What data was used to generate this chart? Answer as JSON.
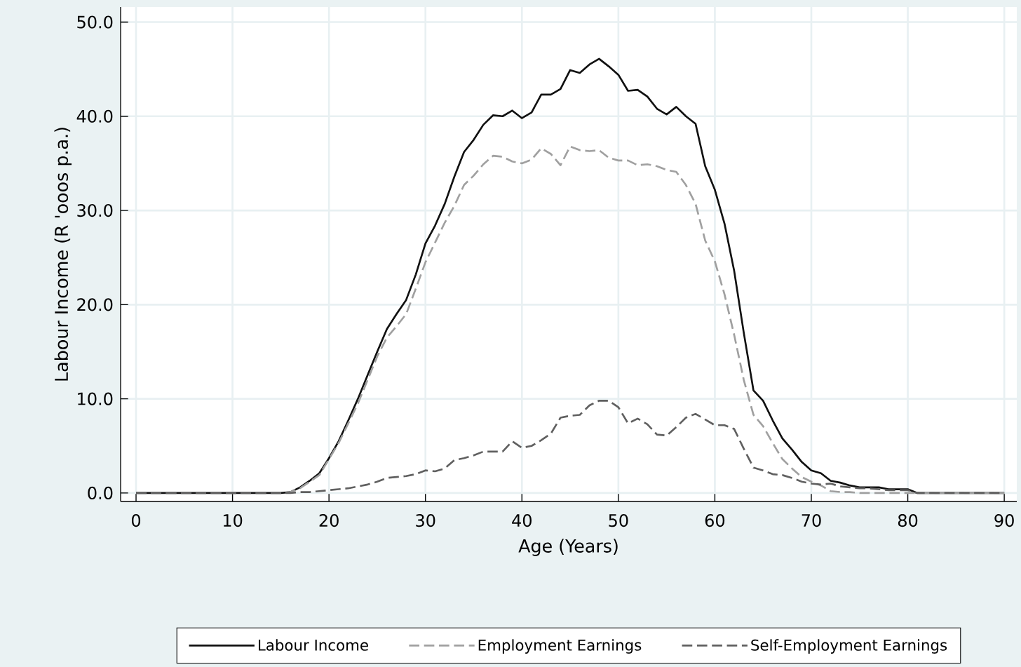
{
  "chart_data": {
    "type": "line",
    "xlabel": "Age (Years)",
    "ylabel": "Labour Income (R 'ooos p.a.)",
    "x": [
      0,
      1,
      2,
      3,
      4,
      5,
      6,
      7,
      8,
      9,
      10,
      11,
      12,
      13,
      14,
      15,
      16,
      17,
      18,
      19,
      20,
      21,
      22,
      23,
      24,
      25,
      26,
      27,
      28,
      29,
      30,
      31,
      32,
      33,
      34,
      35,
      36,
      37,
      38,
      39,
      40,
      41,
      42,
      43,
      44,
      45,
      46,
      47,
      48,
      49,
      50,
      51,
      52,
      53,
      54,
      55,
      56,
      57,
      58,
      59,
      60,
      61,
      62,
      63,
      64,
      65,
      66,
      67,
      68,
      69,
      70,
      71,
      72,
      73,
      74,
      75,
      76,
      77,
      78,
      79,
      80,
      81,
      82,
      83,
      84,
      85,
      86,
      87,
      88,
      89,
      90
    ],
    "series": [
      {
        "name": "Labour Income",
        "color": "#111111",
        "line_style": "solid",
        "values": [
          0,
          0,
          0,
          0,
          0,
          0,
          0,
          0,
          0,
          0,
          0,
          0,
          0,
          0,
          0,
          0,
          0.1,
          0.6,
          1.3,
          2.1,
          3.7,
          5.5,
          7.7,
          10.0,
          12.5,
          15.0,
          17.4,
          19.0,
          20.5,
          23.2,
          26.5,
          28.4,
          30.7,
          33.6,
          36.2,
          37.5,
          39.1,
          40.1,
          40.0,
          40.6,
          39.8,
          40.4,
          42.3,
          42.3,
          42.9,
          44.9,
          44.6,
          45.5,
          46.1,
          45.3,
          44.4,
          42.7,
          42.8,
          42.1,
          40.8,
          40.2,
          41.0,
          40.0,
          39.2,
          34.7,
          32.2,
          28.6,
          23.6,
          17.0,
          10.9,
          9.8,
          7.7,
          5.8,
          4.6,
          3.3,
          2.4,
          2.1,
          1.3,
          1.1,
          0.8,
          0.6,
          0.6,
          0.6,
          0.4,
          0.4,
          0.4,
          0,
          0,
          0,
          0,
          0,
          0,
          0,
          0,
          0,
          0
        ]
      },
      {
        "name": "Employment Earnings",
        "color": "#a0a0a0",
        "line_style": "dashed",
        "values": [
          0,
          0,
          0,
          0,
          0,
          0,
          0,
          0,
          0,
          0,
          0,
          0,
          0,
          0,
          0,
          0,
          0.1,
          0.5,
          1.2,
          1.9,
          3.6,
          5.3,
          7.4,
          9.5,
          12.0,
          14.5,
          16.5,
          17.7,
          19.0,
          21.7,
          24.5,
          26.6,
          28.7,
          30.5,
          32.7,
          33.7,
          34.9,
          35.8,
          35.7,
          35.2,
          35.0,
          35.4,
          36.6,
          36.0,
          34.8,
          36.8,
          36.4,
          36.3,
          36.4,
          35.6,
          35.3,
          35.3,
          34.8,
          34.9,
          34.7,
          34.3,
          34.1,
          32.7,
          30.7,
          26.8,
          24.6,
          21.1,
          16.8,
          12.0,
          8.3,
          7.1,
          5.3,
          3.6,
          2.6,
          1.7,
          1.2,
          0.8,
          0.2,
          0.1,
          0.1,
          0,
          0,
          0,
          0,
          0,
          0,
          0,
          0,
          0,
          0,
          0,
          0,
          0,
          0,
          0,
          0
        ]
      },
      {
        "name": "Self-Employment Earnings",
        "color": "#606060",
        "line_style": "dashed",
        "values": [
          0,
          0,
          0,
          0,
          0,
          0,
          0,
          0,
          0,
          0,
          0,
          0,
          0,
          0,
          0,
          0,
          0,
          0.1,
          0.1,
          0.2,
          0.3,
          0.4,
          0.5,
          0.7,
          0.9,
          1.2,
          1.6,
          1.7,
          1.8,
          2.0,
          2.4,
          2.3,
          2.6,
          3.5,
          3.7,
          4.0,
          4.4,
          4.4,
          4.4,
          5.5,
          4.8,
          5.0,
          5.6,
          6.3,
          8.0,
          8.2,
          8.3,
          9.3,
          9.8,
          9.8,
          9.1,
          7.4,
          7.9,
          7.3,
          6.2,
          6.1,
          7.0,
          8.0,
          8.4,
          7.8,
          7.2,
          7.2,
          6.8,
          4.7,
          2.7,
          2.4,
          2.0,
          1.9,
          1.6,
          1.2,
          1.0,
          0.9,
          1.0,
          0.7,
          0.6,
          0.5,
          0.5,
          0.4,
          0.3,
          0.3,
          0.3,
          0,
          0,
          0,
          0,
          0,
          0,
          0,
          0,
          0,
          0
        ]
      }
    ],
    "xlim": [
      -1.6,
      91.3
    ],
    "ylim": [
      -0.9,
      51.6
    ],
    "xticks": [
      0,
      10,
      20,
      30,
      40,
      50,
      60,
      70,
      80,
      90
    ],
    "yticks": [
      {
        "value": 0,
        "label": "0.0"
      },
      {
        "value": 10,
        "label": "10.0"
      },
      {
        "value": 20,
        "label": "20.0"
      },
      {
        "value": 30,
        "label": "30.0"
      },
      {
        "value": 40,
        "label": "40.0"
      },
      {
        "value": 50,
        "label": "50.0"
      }
    ],
    "grid": true,
    "legend": "bottom",
    "marker": "none"
  }
}
